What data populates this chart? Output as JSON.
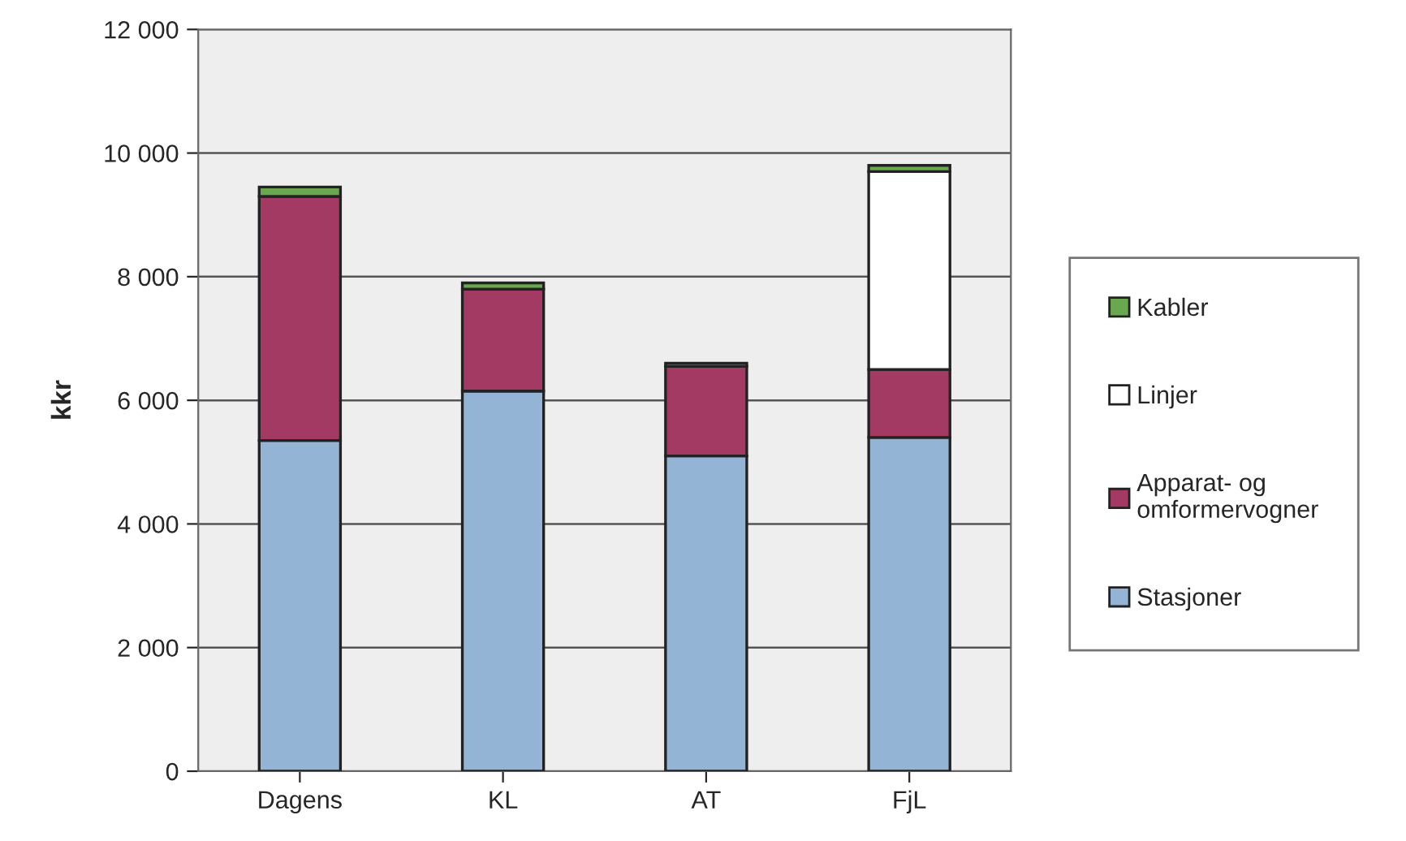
{
  "chart_data": {
    "type": "bar",
    "stacked": true,
    "ylabel": "kkr",
    "categories": [
      "Dagens",
      "KL",
      "AT",
      "FjL"
    ],
    "series": [
      {
        "name": "Stasjoner",
        "color": "#94b4d6",
        "values": [
          5350,
          6150,
          5100,
          5400
        ]
      },
      {
        "name": "Apparat- og\nomformervogner",
        "color": "#a33a63",
        "values": [
          3950,
          1650,
          1450,
          1100
        ]
      },
      {
        "name": "Linjer",
        "color": "#ffffff",
        "values": [
          0,
          0,
          0,
          3200
        ]
      },
      {
        "name": "Kabler",
        "color": "#6aa84f",
        "values": [
          150,
          100,
          50,
          100
        ]
      }
    ],
    "ylim": [
      0,
      12000
    ],
    "yticks": [
      {
        "value": 0,
        "label": "0"
      },
      {
        "value": 2000,
        "label": "2 000"
      },
      {
        "value": 4000,
        "label": "4 000"
      },
      {
        "value": 6000,
        "label": "6 000"
      },
      {
        "value": 8000,
        "label": "8 000"
      },
      {
        "value": 10000,
        "label": "10 000"
      },
      {
        "value": 12000,
        "label": "12 000"
      }
    ],
    "grid": "y",
    "legend": "right"
  }
}
